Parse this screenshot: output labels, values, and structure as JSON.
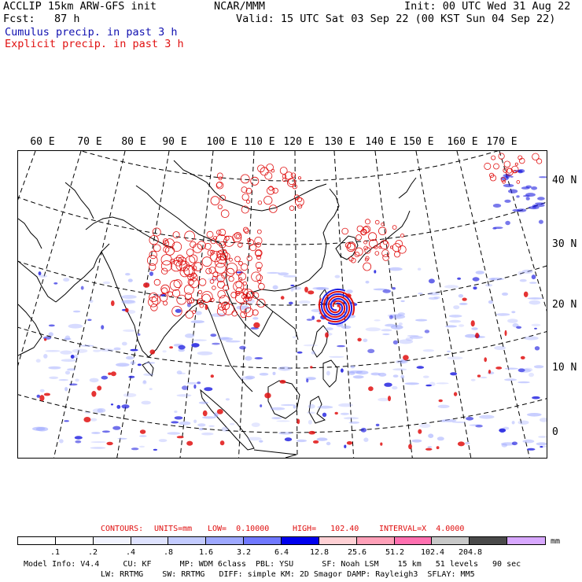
{
  "header": {
    "model": "ACCLIP 15km ARW-GFS init",
    "org": "NCAR/MMM",
    "init": "Init: 00 UTC Wed 31 Aug 22",
    "fcst": "Fcst:   87 h",
    "valid": "Valid: 15 UTC Sat 03 Sep 22 (00 KST Sun 04 Sep 22)",
    "field1": "Cumulus precip. in past 3 h",
    "field2": "Explicit precip. in past 3 h"
  },
  "map": {
    "lon_labels": [
      "60 E",
      "70 E",
      "80 E",
      "90 E",
      "100 E",
      "110 E",
      "120 E",
      "130 E",
      "140 E",
      "150 E",
      "160 E",
      "170 E"
    ],
    "lat_labels": [
      "40 N",
      "30 N",
      "20 N",
      "10 N",
      "0"
    ],
    "colors": {
      "cumulus": "#2020e0",
      "explicit": "#e01010",
      "coast": "#000000",
      "grid": "#000000"
    }
  },
  "contours": {
    "label": "CONTOURS:",
    "units": "UNITS=mm",
    "low": "LOW=  0.10000",
    "high": "HIGH=   102.40",
    "interval": "INTERVAL=X  4.0000"
  },
  "colorbar": {
    "unit": "mm",
    "ticks": [
      ".1",
      ".2",
      ".4",
      ".8",
      "1.6",
      "3.2",
      "6.4",
      "12.8",
      "25.6",
      "51.2",
      "102.4",
      "204.8"
    ],
    "colors": [
      "#ffffff",
      "#ffffff",
      "#f2f4ff",
      "#dfe3ff",
      "#c3cbff",
      "#9ea8ff",
      "#7078ff",
      "#0000ee",
      "#ffd0d4",
      "#ffa0b8",
      "#ff70b0",
      "#c8c8c8",
      "#4a4a4a",
      "#d8a8ff"
    ]
  },
  "footer": {
    "line1": "Model Info: V4.4     CU: KF      MP: WDM 6class  PBL: YSU      SF: Noah LSM    15 km   51 levels   90 sec",
    "line2": "LW: RRTMG    SW: RRTMG   DIFF: simple KM: 2D Smagor DAMP: Rayleigh3  SFLAY: MM5"
  }
}
